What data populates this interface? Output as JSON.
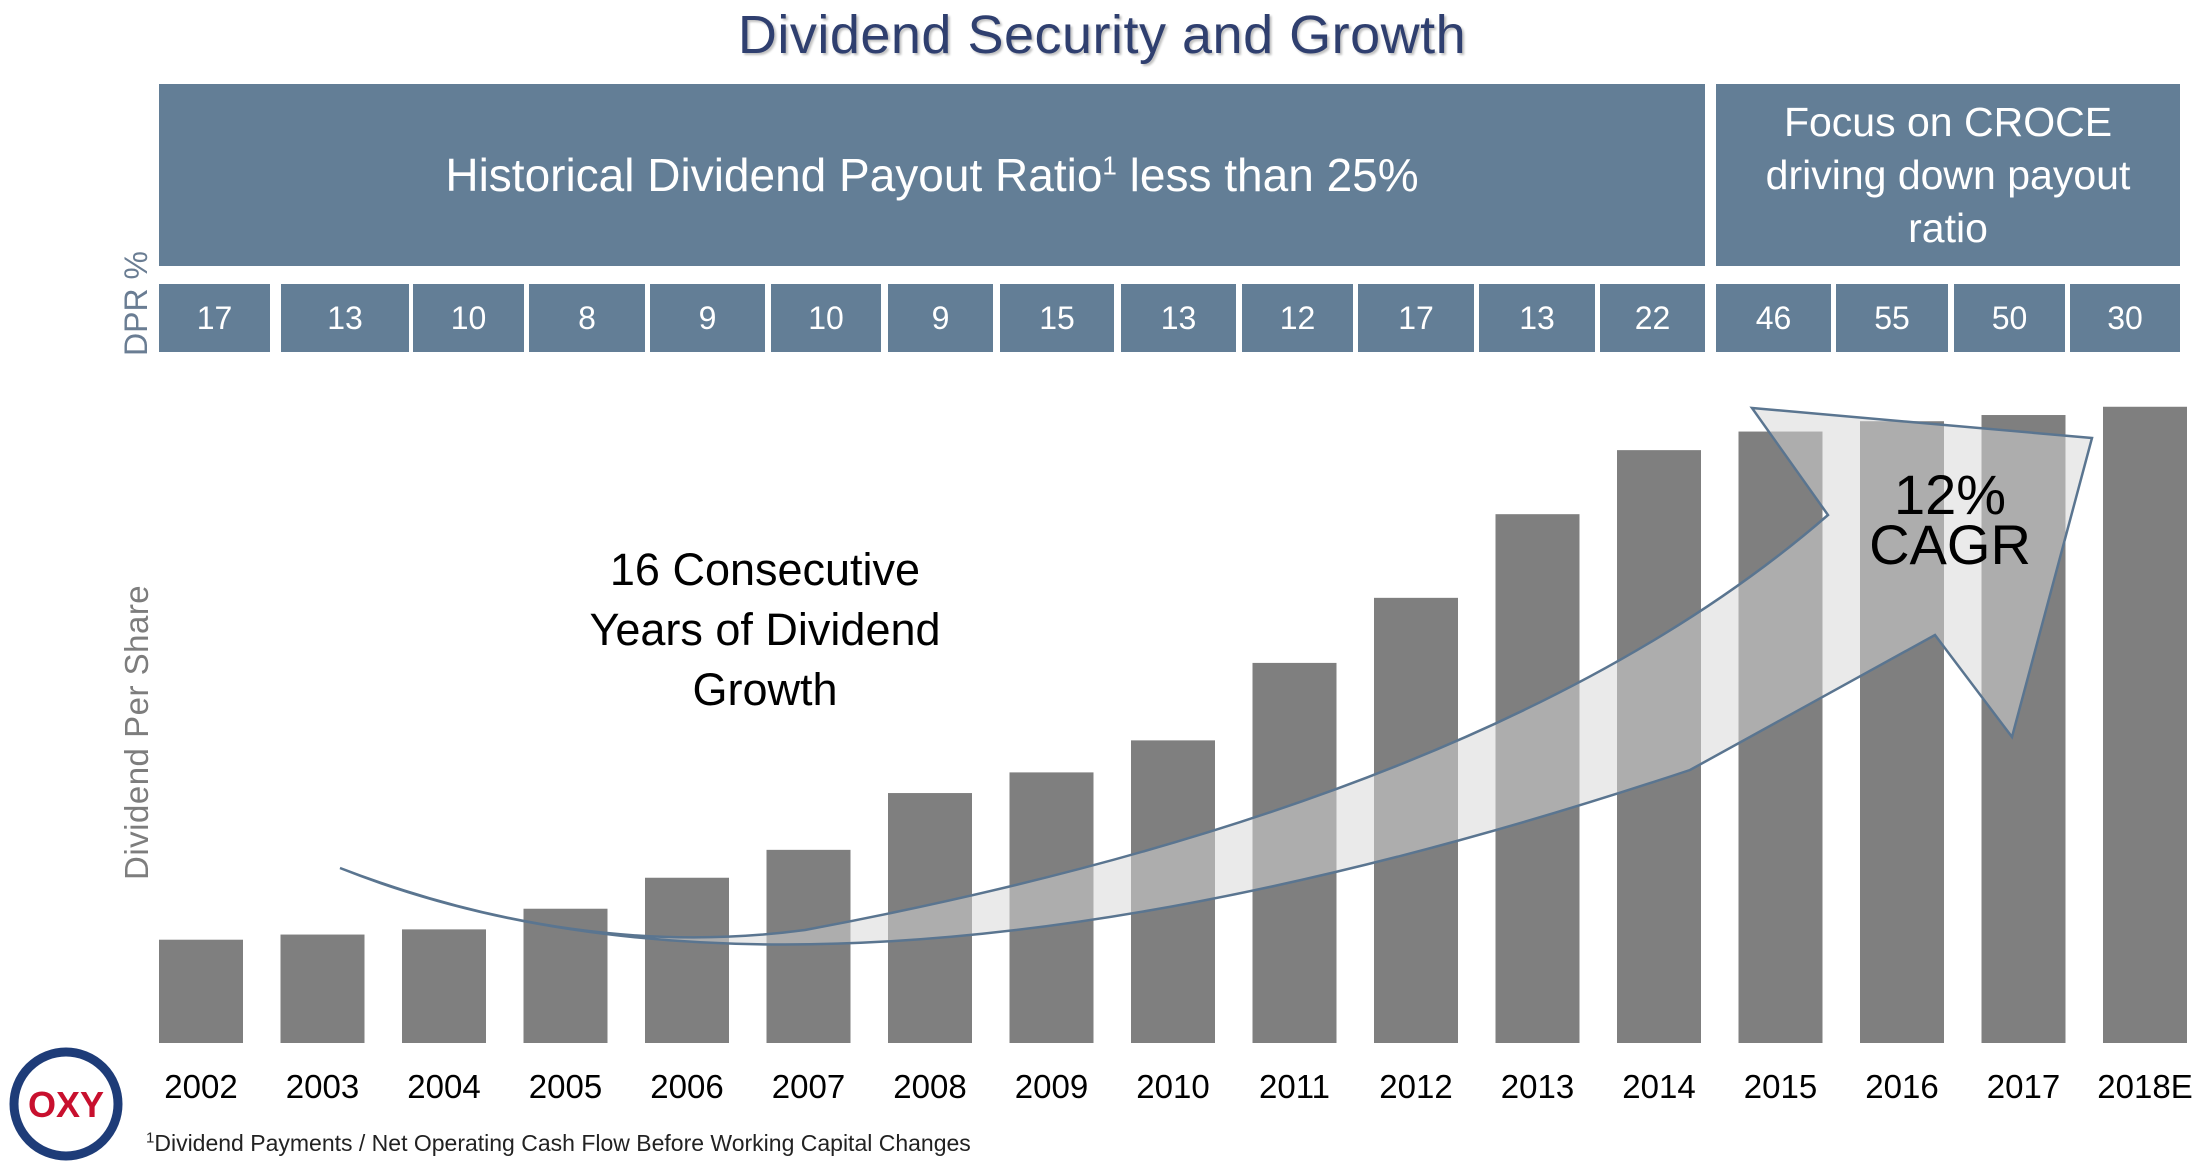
{
  "title": "Dividend Security and Growth",
  "banner_left": {
    "text": "Historical Dividend Payout Ratio",
    "sup": "1",
    "text_after": " less than 25%"
  },
  "banner_right": {
    "line1": "Focus on CROCE",
    "line2": "driving down payout",
    "line3": "ratio"
  },
  "dpr_label": "DPR %",
  "growth_text": {
    "line1": "16 Consecutive",
    "line2": "Years of Dividend",
    "line3": "Growth"
  },
  "cagr_text": {
    "line1": "12%",
    "line2": "CAGR"
  },
  "footnote": {
    "sup": "1",
    "text": "Dividend Payments / Net Operating Cash Flow Before Working Capital Changes"
  },
  "logo": {
    "text": "OXY"
  },
  "colors": {
    "banner": "#637e96",
    "bar": "#7f7f7f",
    "title": "#2f3f6f",
    "arrow_stroke": "#5a7590"
  },
  "chart_data": {
    "type": "bar",
    "title": "",
    "xlabel": "",
    "ylabel": "Dividend Per Share",
    "categories": [
      "2002",
      "2003",
      "2004",
      "2005",
      "2006",
      "2007",
      "2008",
      "2009",
      "2010",
      "2011",
      "2012",
      "2013",
      "2014",
      "2015",
      "2016",
      "2017",
      "2018E"
    ],
    "dpr_percent": [
      17,
      13,
      10,
      8,
      9,
      10,
      9,
      15,
      13,
      12,
      17,
      13,
      22,
      46,
      55,
      50,
      30
    ],
    "values": [
      1.0,
      1.05,
      1.1,
      1.3,
      1.6,
      1.87,
      2.42,
      2.62,
      2.93,
      3.68,
      4.31,
      5.12,
      5.74,
      5.92,
      6.02,
      6.08,
      6.16
    ],
    "ylim": [
      0,
      7
    ],
    "grid": false
  }
}
